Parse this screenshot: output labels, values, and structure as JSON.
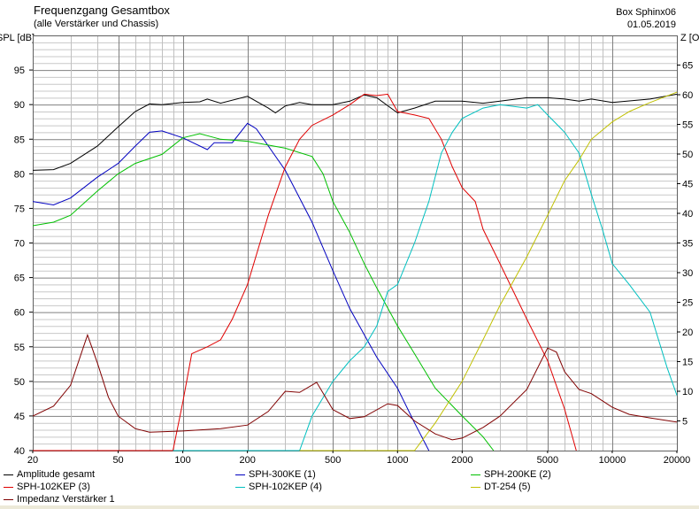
{
  "header": {
    "title": "Frequenzgang Gesamtbox",
    "subtitle": "(alle Verstärker und Chassis)",
    "box": "Box Sphinx06",
    "date": "01.05.2019"
  },
  "chart_data": {
    "type": "line",
    "title": "Frequenzgang Gesamtbox",
    "subtitle": "(alle Verstärker und Chassis)",
    "xscale": "log",
    "xlim": [
      20,
      20000
    ],
    "xticks": [
      20,
      50,
      100,
      200,
      500,
      1000,
      2000,
      5000,
      10000,
      20000
    ],
    "ylabel": "SPL [dB]",
    "ylim": [
      40,
      100
    ],
    "yticks": [
      40,
      45,
      50,
      55,
      60,
      65,
      70,
      75,
      80,
      85,
      90,
      95
    ],
    "y2label": "Z [Ohm]",
    "y2lim": [
      0,
      70
    ],
    "y2ticks": [
      5,
      10,
      15,
      20,
      25,
      30,
      35,
      40,
      45,
      50,
      55,
      60,
      65
    ],
    "grid": true,
    "legend": "bottom",
    "series": [
      {
        "name": "Amplitude gesamt",
        "color": "#000000",
        "axis": "left",
        "points": [
          [
            20,
            80.5
          ],
          [
            25,
            80.6
          ],
          [
            30,
            81.5
          ],
          [
            40,
            84
          ],
          [
            50,
            86.8
          ],
          [
            60,
            89
          ],
          [
            70,
            90.1
          ],
          [
            80,
            90
          ],
          [
            100,
            90.3
          ],
          [
            120,
            90.4
          ],
          [
            130,
            90.8
          ],
          [
            150,
            90.2
          ],
          [
            200,
            91.2
          ],
          [
            250,
            89.5
          ],
          [
            270,
            88.8
          ],
          [
            300,
            89.8
          ],
          [
            350,
            90.3
          ],
          [
            400,
            90
          ],
          [
            500,
            90
          ],
          [
            600,
            90.5
          ],
          [
            700,
            91.4
          ],
          [
            800,
            91
          ],
          [
            1000,
            88.8
          ],
          [
            1200,
            89.5
          ],
          [
            1500,
            90.5
          ],
          [
            2000,
            90.5
          ],
          [
            2500,
            90.2
          ],
          [
            3000,
            90.5
          ],
          [
            4000,
            91
          ],
          [
            5000,
            91
          ],
          [
            6000,
            90.8
          ],
          [
            7000,
            90.5
          ],
          [
            8000,
            90.8
          ],
          [
            10000,
            90.3
          ],
          [
            15000,
            90.8
          ],
          [
            20000,
            91.5
          ]
        ]
      },
      {
        "name": "SPH-300KE (1)",
        "color": "#0000c0",
        "axis": "left",
        "points": [
          [
            20,
            76
          ],
          [
            25,
            75.5
          ],
          [
            30,
            76.5
          ],
          [
            40,
            79.5
          ],
          [
            50,
            81.5
          ],
          [
            60,
            84
          ],
          [
            70,
            86
          ],
          [
            80,
            86.2
          ],
          [
            100,
            85.2
          ],
          [
            130,
            83.5
          ],
          [
            140,
            84.5
          ],
          [
            170,
            84.5
          ],
          [
            200,
            87.3
          ],
          [
            220,
            86.5
          ],
          [
            300,
            80.5
          ],
          [
            400,
            73
          ],
          [
            500,
            66
          ],
          [
            600,
            60.5
          ],
          [
            800,
            53.5
          ],
          [
            1000,
            49
          ],
          [
            1200,
            44
          ],
          [
            1400,
            40
          ]
        ]
      },
      {
        "name": "SPH-200KE (2)",
        "color": "#00c000",
        "axis": "left",
        "points": [
          [
            20,
            72.5
          ],
          [
            25,
            73
          ],
          [
            30,
            74
          ],
          [
            40,
            77.5
          ],
          [
            50,
            80
          ],
          [
            60,
            81.5
          ],
          [
            70,
            82.2
          ],
          [
            80,
            82.8
          ],
          [
            100,
            85.2
          ],
          [
            120,
            85.8
          ],
          [
            150,
            85
          ],
          [
            200,
            84.7
          ],
          [
            300,
            83.7
          ],
          [
            400,
            82.5
          ],
          [
            450,
            80
          ],
          [
            500,
            76
          ],
          [
            600,
            71.5
          ],
          [
            700,
            67
          ],
          [
            800,
            63.5
          ],
          [
            1000,
            58
          ],
          [
            1200,
            54
          ],
          [
            1500,
            49
          ],
          [
            2000,
            45
          ],
          [
            2500,
            42
          ],
          [
            2800,
            40
          ]
        ]
      },
      {
        "name": "SPH-102KEP (3)",
        "color": "#e00000",
        "axis": "left",
        "points": [
          [
            20,
            40
          ],
          [
            90,
            40
          ],
          [
            100,
            47
          ],
          [
            110,
            54
          ],
          [
            130,
            55
          ],
          [
            150,
            56
          ],
          [
            170,
            59
          ],
          [
            200,
            64
          ],
          [
            250,
            74
          ],
          [
            300,
            81
          ],
          [
            350,
            85
          ],
          [
            400,
            87
          ],
          [
            500,
            88.5
          ],
          [
            600,
            90
          ],
          [
            700,
            91.5
          ],
          [
            800,
            91.3
          ],
          [
            900,
            91.5
          ],
          [
            1000,
            89
          ],
          [
            1200,
            88.5
          ],
          [
            1400,
            88
          ],
          [
            1600,
            85
          ],
          [
            1800,
            81
          ],
          [
            2000,
            78
          ],
          [
            2300,
            76
          ],
          [
            2500,
            72
          ],
          [
            3000,
            67
          ],
          [
            4000,
            59
          ],
          [
            5000,
            53
          ],
          [
            6000,
            46
          ],
          [
            6800,
            40
          ]
        ]
      },
      {
        "name": "SPH-102KEP (4)",
        "color": "#00c0c0",
        "axis": "left",
        "points": [
          [
            90,
            40
          ],
          [
            350,
            40
          ],
          [
            400,
            45
          ],
          [
            500,
            50
          ],
          [
            600,
            53
          ],
          [
            700,
            55
          ],
          [
            800,
            58
          ],
          [
            900,
            63
          ],
          [
            1000,
            64
          ],
          [
            1200,
            70
          ],
          [
            1400,
            76
          ],
          [
            1600,
            83
          ],
          [
            1800,
            86
          ],
          [
            2000,
            88
          ],
          [
            2500,
            89.5
          ],
          [
            3000,
            90
          ],
          [
            4000,
            89.5
          ],
          [
            4500,
            90
          ],
          [
            5000,
            88.5
          ],
          [
            6000,
            86
          ],
          [
            7000,
            83
          ],
          [
            8000,
            77
          ],
          [
            9000,
            72
          ],
          [
            10000,
            67
          ],
          [
            12000,
            64
          ],
          [
            15000,
            60
          ],
          [
            18000,
            52
          ],
          [
            20000,
            48
          ]
        ]
      },
      {
        "name": "DT-254 (5)",
        "color": "#c0c000",
        "axis": "left",
        "points": [
          [
            350,
            40
          ],
          [
            1200,
            40
          ],
          [
            1500,
            44
          ],
          [
            2000,
            50
          ],
          [
            2500,
            56
          ],
          [
            3000,
            61
          ],
          [
            4000,
            68
          ],
          [
            5000,
            74
          ],
          [
            6000,
            79
          ],
          [
            7000,
            82
          ],
          [
            8000,
            85
          ],
          [
            10000,
            87.5
          ],
          [
            12000,
            89
          ],
          [
            15000,
            90.3
          ],
          [
            20000,
            91.8
          ]
        ]
      },
      {
        "name": "Impedanz Verstärker 1",
        "color": "#800000",
        "axis": "right",
        "points": [
          [
            20,
            5.8
          ],
          [
            25,
            7.5
          ],
          [
            30,
            11
          ],
          [
            36,
            19.5
          ],
          [
            40,
            14.8
          ],
          [
            45,
            9
          ],
          [
            50,
            5.8
          ],
          [
            60,
            3.7
          ],
          [
            70,
            3.1
          ],
          [
            100,
            3.3
          ],
          [
            150,
            3.7
          ],
          [
            200,
            4.3
          ],
          [
            250,
            6.6
          ],
          [
            300,
            10
          ],
          [
            350,
            9.8
          ],
          [
            420,
            11.5
          ],
          [
            500,
            6.9
          ],
          [
            600,
            5.4
          ],
          [
            700,
            5.7
          ],
          [
            900,
            7.9
          ],
          [
            1000,
            7.6
          ],
          [
            1200,
            5
          ],
          [
            1500,
            2.8
          ],
          [
            1800,
            1.8
          ],
          [
            2000,
            2.1
          ],
          [
            2500,
            3.9
          ],
          [
            3000,
            5.8
          ],
          [
            4000,
            10.3
          ],
          [
            5000,
            17.3
          ],
          [
            5500,
            16.6
          ],
          [
            6000,
            13.3
          ],
          [
            7000,
            10.3
          ],
          [
            8000,
            9.6
          ],
          [
            10000,
            7.3
          ],
          [
            12000,
            6.1
          ],
          [
            15000,
            5.5
          ],
          [
            20000,
            4.8
          ]
        ]
      }
    ]
  }
}
